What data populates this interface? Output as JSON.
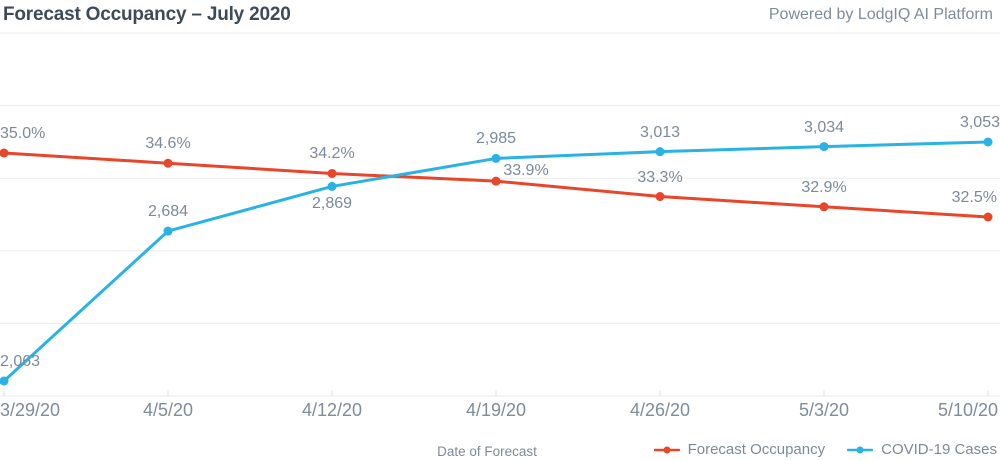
{
  "header": {
    "title": "Forecast Occupancy – July 2020",
    "powered_by": "Powered by LodgIQ AI Platform"
  },
  "colors": {
    "occupancy": "#e8462b",
    "covid": "#29b2e4",
    "label_text": "#7b8a9b",
    "title_text": "#3d4b59",
    "grid": "#ececec"
  },
  "chart_data": {
    "type": "line",
    "title": "Forecast Occupancy – July 2020",
    "categories": [
      "3/29/20",
      "4/5/20",
      "4/12/20",
      "4/19/20",
      "4/26/20",
      "5/3/20",
      "5/10/20"
    ],
    "xlabel": "Date of Forecast",
    "grid": "horizontal-only",
    "legend_position": "bottom-right",
    "series": [
      {
        "name": "Forecast Occupancy",
        "color": "#e8462b",
        "values": [
          35.0,
          34.6,
          34.2,
          33.9,
          33.3,
          32.9,
          32.5
        ],
        "labels": [
          "35.0%",
          "34.6%",
          "34.2%",
          "33.9%",
          "33.3%",
          "32.9%",
          "32.5%"
        ],
        "unit": "%"
      },
      {
        "name": "COVID-19 Cases",
        "color": "#29b2e4",
        "values": [
          2063,
          2684,
          2869,
          2985,
          3013,
          3034,
          3053
        ],
        "labels": [
          "2,063",
          "2,684",
          "2,869",
          "2,985",
          "3,013",
          "3,034",
          "3,053"
        ],
        "unit": "cases"
      }
    ]
  },
  "legend": {
    "items": [
      {
        "label": "Forecast Occupancy",
        "color": "#e8462b"
      },
      {
        "label": "COVID-19 Cases",
        "color": "#29b2e4"
      }
    ]
  }
}
